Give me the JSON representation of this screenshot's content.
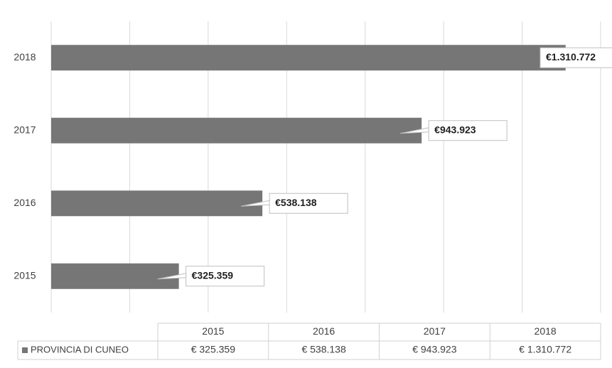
{
  "chart_data": {
    "type": "hbar",
    "categories": [
      "2015",
      "2016",
      "2017",
      "2018"
    ],
    "series": [
      {
        "name": "PROVINCIA DI CUNEO",
        "color": "#767676",
        "values": [
          325359,
          538138,
          943923,
          1310772
        ],
        "value_labels": [
          "€325.359",
          "€538.138",
          "€943.923",
          "€1.310.772"
        ],
        "table_labels": [
          "€ 325.359",
          "€ 538.138",
          "€ 943.923",
          "€ 1.310.772"
        ]
      }
    ],
    "xlim": [
      0,
      1400000
    ],
    "xticks": [
      0,
      200000,
      400000,
      600000,
      800000,
      1000000,
      1200000,
      1400000
    ],
    "xtick_labels_shown": false,
    "grid": true
  }
}
